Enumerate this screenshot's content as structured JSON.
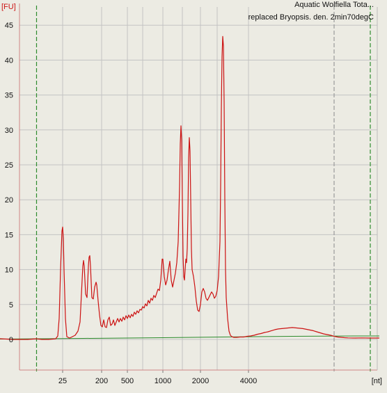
{
  "chart_data": {
    "type": "line",
    "title": [
      "Aquatic Wolfiella Tota...",
      "replaced Bryopsis. den. 2min70degC"
    ],
    "y_unit": "[FU]",
    "x_unit": "[nt]",
    "ylim": [
      -4.5,
      48
    ],
    "y_ticks": [
      0,
      5,
      10,
      15,
      20,
      25,
      30,
      35,
      40,
      45
    ],
    "x_ticks": [
      {
        "label": "25",
        "x": 90
      },
      {
        "label": "200",
        "x": 146
      },
      {
        "label": "500",
        "x": 183
      },
      {
        "label": "1000",
        "x": 234
      },
      {
        "label": "2000",
        "x": 288
      },
      {
        "label": "4000",
        "x": 357
      }
    ],
    "x_minor_grid": [
      205,
      262,
      312
    ],
    "markers": [
      52.5,
      480,
      532
    ],
    "colors": {
      "background": "#ecebe3",
      "grid": "#c3c3c3",
      "marker": "#2e8b2e",
      "signal": "#cc1212",
      "baseline": "#2a8a2a",
      "axis": "#d08585"
    },
    "series": [
      {
        "points": [
          [
            0,
            0.1
          ],
          [
            20,
            0.0
          ],
          [
            40,
            0.0
          ],
          [
            52,
            0.1
          ],
          [
            60,
            0.0
          ],
          [
            70,
            0.0
          ],
          [
            80,
            0.1
          ],
          [
            83,
            0.5
          ],
          [
            85,
            3.0
          ],
          [
            87,
            10.0
          ],
          [
            89,
            15.5
          ],
          [
            90,
            16.1
          ],
          [
            91,
            14.5
          ],
          [
            92,
            10.0
          ],
          [
            94,
            3.0
          ],
          [
            96,
            0.4
          ],
          [
            100,
            0.2
          ],
          [
            104,
            0.4
          ],
          [
            108,
            0.6
          ],
          [
            112,
            1.2
          ],
          [
            115,
            2.5
          ],
          [
            117,
            6.5
          ],
          [
            119,
            10.5
          ],
          [
            120,
            11.3
          ],
          [
            121,
            10.5
          ],
          [
            123,
            6.5
          ],
          [
            125,
            6.0
          ],
          [
            127,
            10.5
          ],
          [
            128,
            11.8
          ],
          [
            129,
            12.0
          ],
          [
            130,
            10.5
          ],
          [
            132,
            6.0
          ],
          [
            134,
            5.8
          ],
          [
            136,
            7.5
          ],
          [
            138,
            8.2
          ],
          [
            139,
            7.8
          ],
          [
            141,
            5.5
          ],
          [
            143,
            3.5
          ],
          [
            145,
            2.0
          ],
          [
            147,
            1.8
          ],
          [
            149,
            2.8
          ],
          [
            151,
            1.8
          ],
          [
            153,
            1.7
          ],
          [
            155,
            2.8
          ],
          [
            157,
            3.2
          ],
          [
            159,
            2.0
          ],
          [
            161,
            2.2
          ],
          [
            163,
            2.8
          ],
          [
            165,
            2.0
          ],
          [
            167,
            2.5
          ],
          [
            169,
            3.0
          ],
          [
            171,
            2.5
          ],
          [
            173,
            3.0
          ],
          [
            175,
            2.6
          ],
          [
            177,
            3.2
          ],
          [
            179,
            2.8
          ],
          [
            181,
            3.4
          ],
          [
            183,
            3.0
          ],
          [
            185,
            3.5
          ],
          [
            187,
            3.1
          ],
          [
            189,
            3.6
          ],
          [
            191,
            3.3
          ],
          [
            193,
            3.9
          ],
          [
            195,
            3.6
          ],
          [
            197,
            4.1
          ],
          [
            199,
            3.8
          ],
          [
            201,
            4.3
          ],
          [
            203,
            4.2
          ],
          [
            205,
            4.7
          ],
          [
            207,
            4.5
          ],
          [
            209,
            5.1
          ],
          [
            211,
            4.8
          ],
          [
            213,
            5.6
          ],
          [
            215,
            5.2
          ],
          [
            217,
            5.9
          ],
          [
            219,
            5.6
          ],
          [
            221,
            6.3
          ],
          [
            223,
            6.0
          ],
          [
            225,
            6.6
          ],
          [
            227,
            7.2
          ],
          [
            229,
            7.0
          ],
          [
            231,
            8.5
          ],
          [
            233,
            11.5
          ],
          [
            234,
            11.5
          ],
          [
            236,
            9.0
          ],
          [
            238,
            7.8
          ],
          [
            240,
            8.5
          ],
          [
            242,
            10.0
          ],
          [
            244,
            11.2
          ],
          [
            246,
            8.5
          ],
          [
            248,
            7.5
          ],
          [
            250,
            8.5
          ],
          [
            252,
            9.5
          ],
          [
            254,
            11.0
          ],
          [
            256,
            14.0
          ],
          [
            258,
            22.0
          ],
          [
            259,
            28.0
          ],
          [
            260,
            30.6
          ],
          [
            261,
            28.5
          ],
          [
            262,
            20.0
          ],
          [
            263,
            12.0
          ],
          [
            264,
            9.0
          ],
          [
            265,
            8.5
          ],
          [
            266,
            10.0
          ],
          [
            267,
            11.5
          ],
          [
            268,
            11.0
          ],
          [
            269,
            13.0
          ],
          [
            270,
            18.0
          ],
          [
            271,
            26.0
          ],
          [
            272,
            28.9
          ],
          [
            273,
            27.0
          ],
          [
            274,
            20.0
          ],
          [
            275,
            13.0
          ],
          [
            276,
            10.0
          ],
          [
            278,
            9.0
          ],
          [
            280,
            7.5
          ],
          [
            282,
            5.5
          ],
          [
            284,
            4.2
          ],
          [
            286,
            4.0
          ],
          [
            288,
            5.0
          ],
          [
            290,
            6.8
          ],
          [
            292,
            7.3
          ],
          [
            294,
            6.8
          ],
          [
            296,
            5.9
          ],
          [
            298,
            5.6
          ],
          [
            300,
            6.0
          ],
          [
            302,
            6.4
          ],
          [
            304,
            6.8
          ],
          [
            306,
            6.5
          ],
          [
            308,
            5.9
          ],
          [
            310,
            6.2
          ],
          [
            312,
            7.0
          ],
          [
            314,
            9.0
          ],
          [
            316,
            14.0
          ],
          [
            317,
            22.0
          ],
          [
            318,
            33.0
          ],
          [
            319,
            40.5
          ],
          [
            320,
            43.4
          ],
          [
            321,
            42.0
          ],
          [
            322,
            34.0
          ],
          [
            323,
            20.0
          ],
          [
            324,
            10.0
          ],
          [
            325,
            6.0
          ],
          [
            327,
            3.0
          ],
          [
            329,
            1.2
          ],
          [
            331,
            0.6
          ],
          [
            333,
            0.4
          ],
          [
            336,
            0.3
          ],
          [
            340,
            0.3
          ],
          [
            345,
            0.35
          ],
          [
            350,
            0.35
          ],
          [
            355,
            0.45
          ],
          [
            360,
            0.5
          ],
          [
            365,
            0.6
          ],
          [
            370,
            0.75
          ],
          [
            375,
            0.85
          ],
          [
            380,
            1.0
          ],
          [
            385,
            1.1
          ],
          [
            390,
            1.25
          ],
          [
            395,
            1.4
          ],
          [
            400,
            1.5
          ],
          [
            405,
            1.55
          ],
          [
            410,
            1.6
          ],
          [
            415,
            1.65
          ],
          [
            420,
            1.7
          ],
          [
            425,
            1.65
          ],
          [
            430,
            1.6
          ],
          [
            435,
            1.55
          ],
          [
            440,
            1.45
          ],
          [
            445,
            1.35
          ],
          [
            450,
            1.25
          ],
          [
            455,
            1.1
          ],
          [
            460,
            0.95
          ],
          [
            465,
            0.8
          ],
          [
            470,
            0.7
          ],
          [
            475,
            0.6
          ],
          [
            480,
            0.45
          ],
          [
            485,
            0.35
          ],
          [
            490,
            0.3
          ],
          [
            495,
            0.25
          ],
          [
            500,
            0.22
          ],
          [
            510,
            0.2
          ],
          [
            520,
            0.22
          ],
          [
            530,
            0.2
          ],
          [
            545,
            0.2
          ]
        ]
      },
      {
        "points": [
          [
            0,
            0.05
          ],
          [
            60,
            0.1
          ],
          [
            120,
            0.15
          ],
          [
            234,
            0.25
          ],
          [
            320,
            0.35
          ],
          [
            420,
            0.45
          ],
          [
            520,
            0.5
          ],
          [
            545,
            0.5
          ]
        ]
      }
    ]
  }
}
